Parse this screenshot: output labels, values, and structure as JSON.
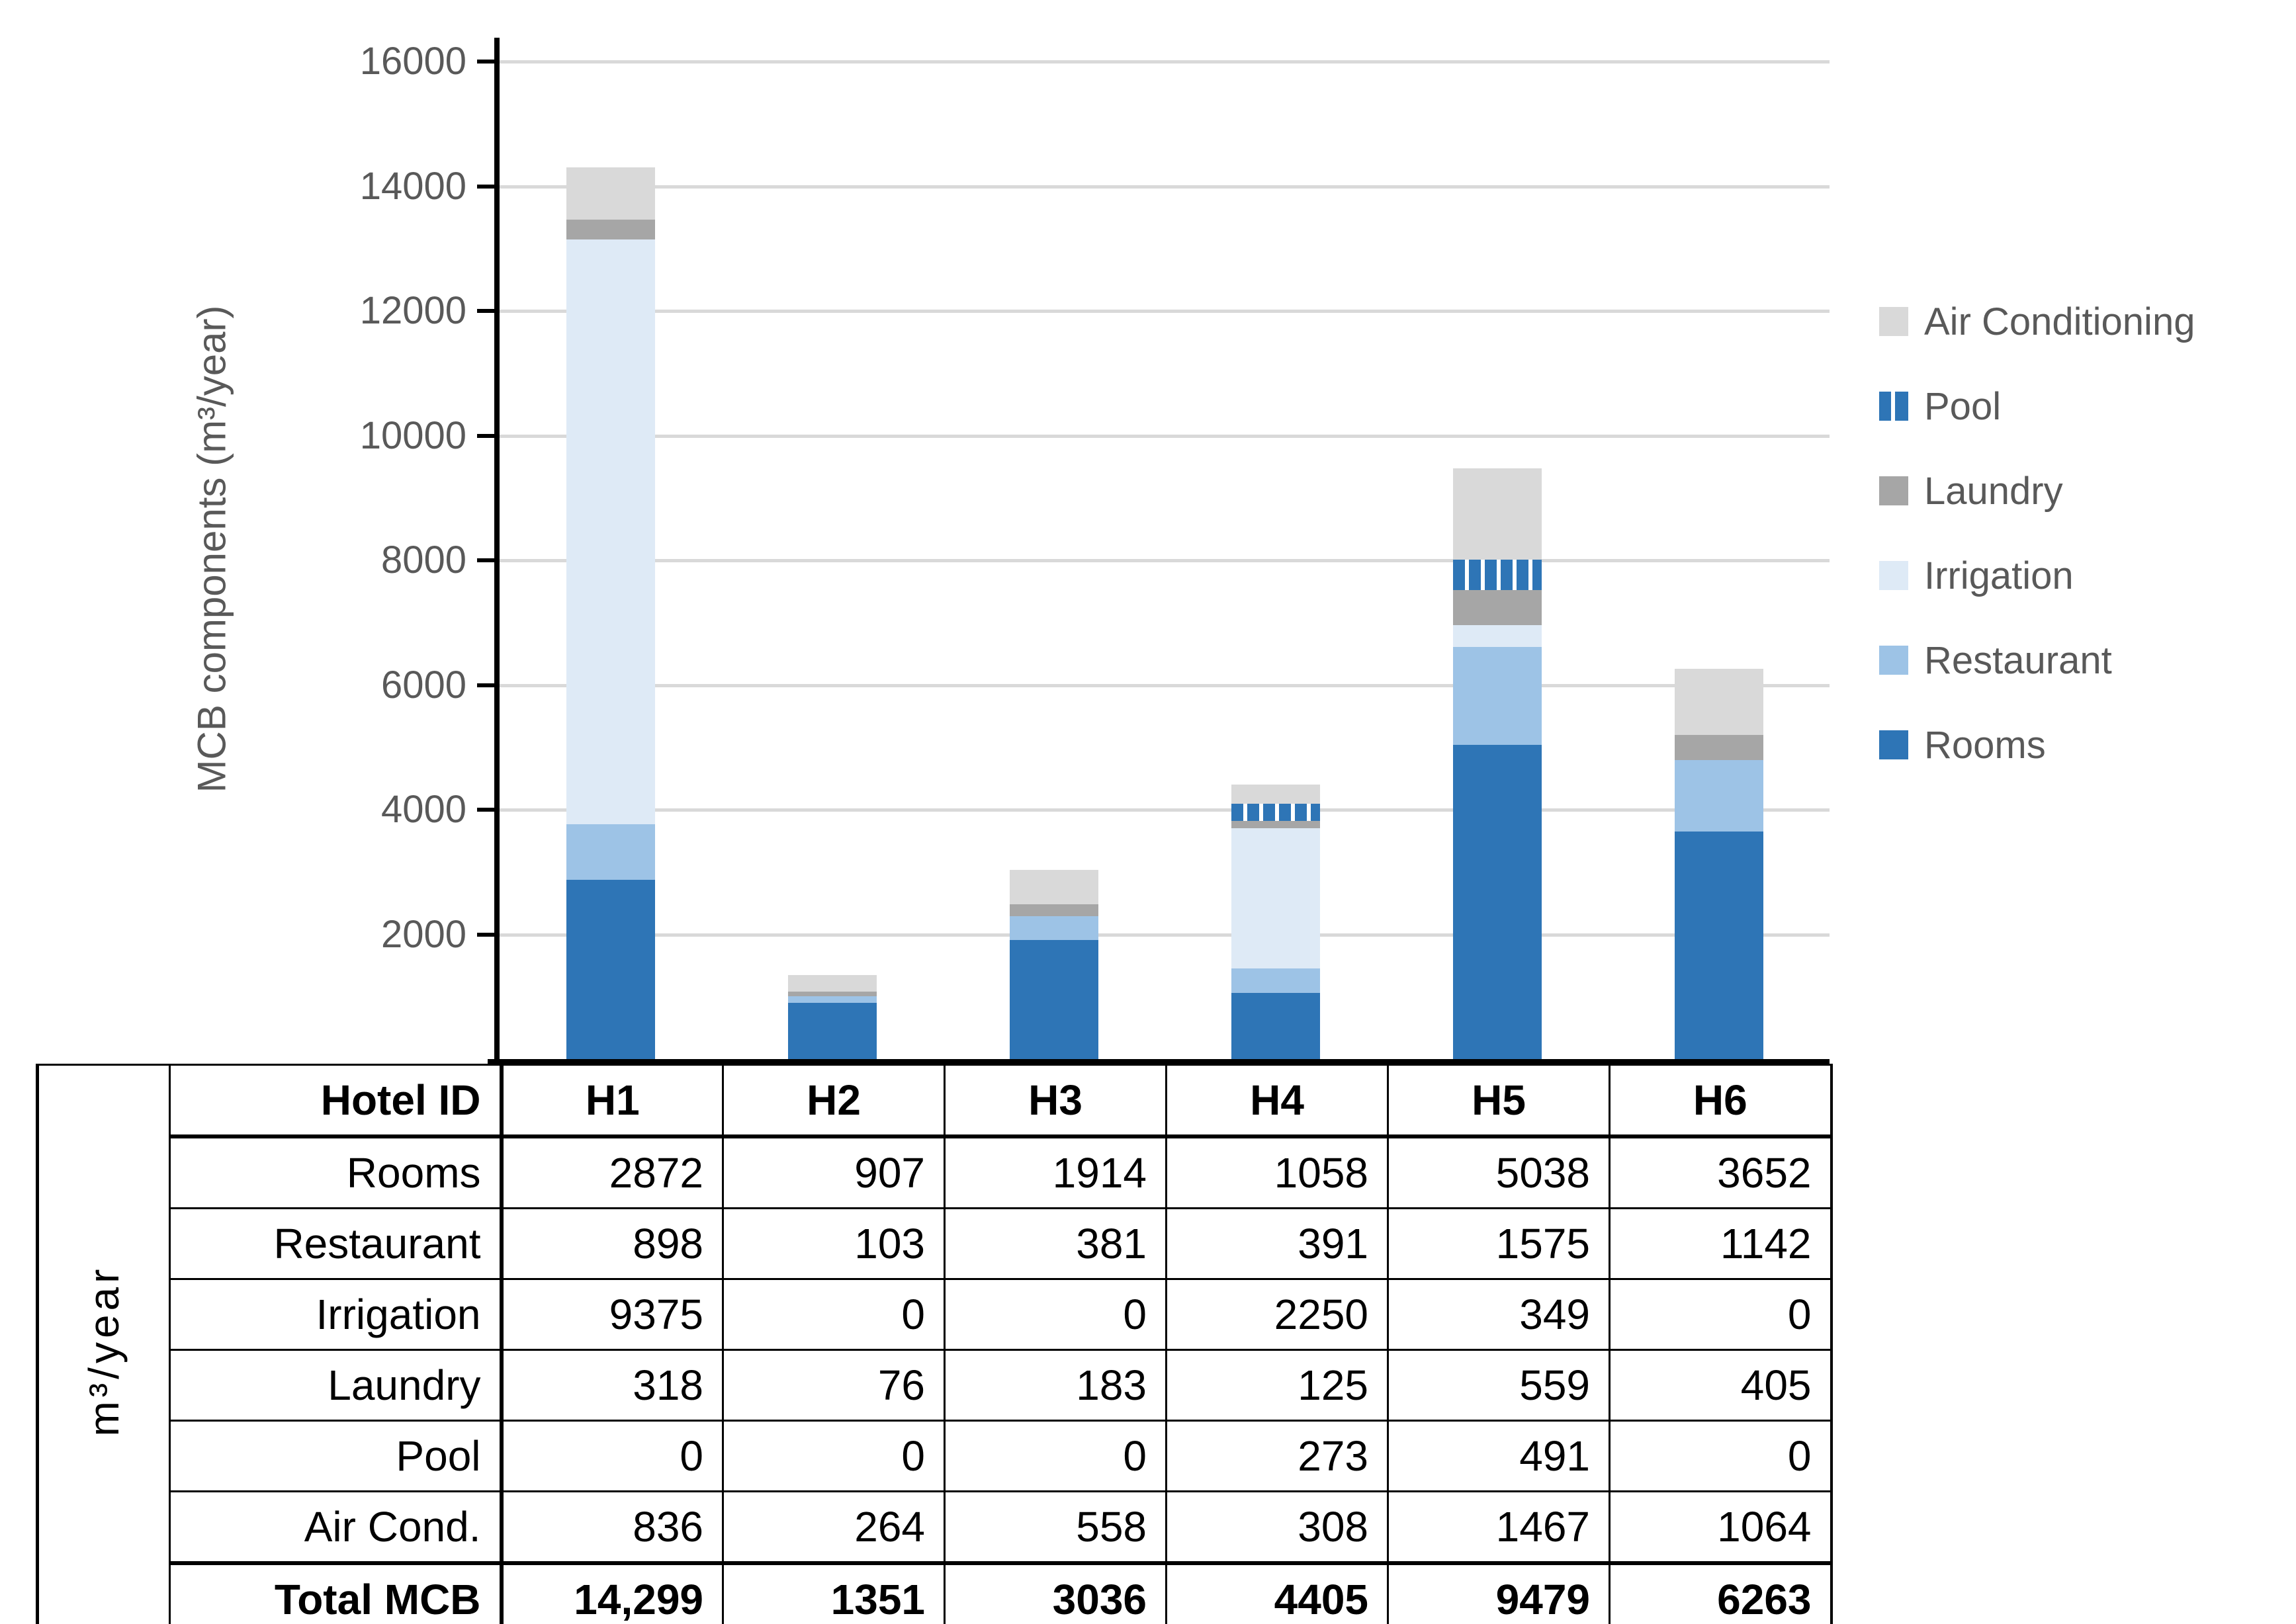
{
  "chart_data": {
    "type": "bar",
    "stacked": true,
    "title": "",
    "xlabel": "",
    "ylabel": "MCB components (m³/year)",
    "ylim": [
      0,
      16000
    ],
    "yticks": [
      2000,
      4000,
      6000,
      8000,
      10000,
      12000,
      14000,
      16000
    ],
    "ytick_labels": [
      "2000",
      "4000",
      "6000",
      "8000",
      "10000",
      "12000",
      "14000",
      "16000"
    ],
    "grid": true,
    "legend_position": "right",
    "legend_order_top_to_bottom": [
      "Air Conditioning",
      "Pool",
      "Laundry",
      "Irrigation",
      "Restaurant",
      "Rooms"
    ],
    "categories": [
      "H1",
      "H2",
      "H3",
      "H4",
      "H5",
      "H6"
    ],
    "series": [
      {
        "name": "Rooms",
        "color": "#2e75b6",
        "pattern": "solid",
        "values": [
          2872,
          907,
          1914,
          1058,
          5038,
          3652
        ]
      },
      {
        "name": "Restaurant",
        "color": "#9dc3e6",
        "pattern": "solid",
        "values": [
          898,
          103,
          381,
          391,
          1575,
          1142
        ]
      },
      {
        "name": "Irrigation",
        "color": "#deeaf6",
        "pattern": "solid",
        "values": [
          9375,
          0,
          0,
          2250,
          349,
          0
        ]
      },
      {
        "name": "Laundry",
        "color": "#a6a6a6",
        "pattern": "solid",
        "values": [
          318,
          76,
          183,
          125,
          559,
          405
        ]
      },
      {
        "name": "Pool",
        "color": "#2e75b6",
        "pattern": "vertical-stripes",
        "values": [
          0,
          0,
          0,
          273,
          491,
          0
        ]
      },
      {
        "name": "Air Conditioning",
        "color": "#d9d9d9",
        "pattern": "solid",
        "values": [
          836,
          264,
          558,
          308,
          1467,
          1064
        ]
      }
    ]
  },
  "table": {
    "corner_unit_label": "m³/year",
    "header_label": "Hotel ID",
    "columns": [
      "H1",
      "H2",
      "H3",
      "H4",
      "H5",
      "H6"
    ],
    "rows": [
      {
        "label": "Rooms",
        "bold": false,
        "values": [
          "2872",
          "907",
          "1914",
          "1058",
          "5038",
          "3652"
        ]
      },
      {
        "label": "Restaurant",
        "bold": false,
        "values": [
          "898",
          "103",
          "381",
          "391",
          "1575",
          "1142"
        ]
      },
      {
        "label": "Irrigation",
        "bold": false,
        "values": [
          "9375",
          "0",
          "0",
          "2250",
          "349",
          "0"
        ]
      },
      {
        "label": "Laundry",
        "bold": false,
        "values": [
          "318",
          "76",
          "183",
          "125",
          "559",
          "405"
        ]
      },
      {
        "label": "Pool",
        "bold": false,
        "values": [
          "0",
          "0",
          "0",
          "273",
          "491",
          "0"
        ]
      },
      {
        "label": "Air Cond.",
        "bold": false,
        "values": [
          "836",
          "264",
          "558",
          "308",
          "1467",
          "1064"
        ]
      },
      {
        "label": "Total MCB",
        "bold": true,
        "values": [
          "14,299",
          "1351",
          "3036",
          "4405",
          "9479",
          "6263"
        ]
      }
    ]
  },
  "colors": {
    "axis_line": "#000000",
    "gridline": "#d9d9d9",
    "axis_text": "#595959",
    "legend_text": "#595959",
    "table_text": "#000000",
    "pool_stripe_fill": "#2e75b6",
    "pool_stripe_gap": "#ffffff",
    "background": "#ffffff"
  }
}
